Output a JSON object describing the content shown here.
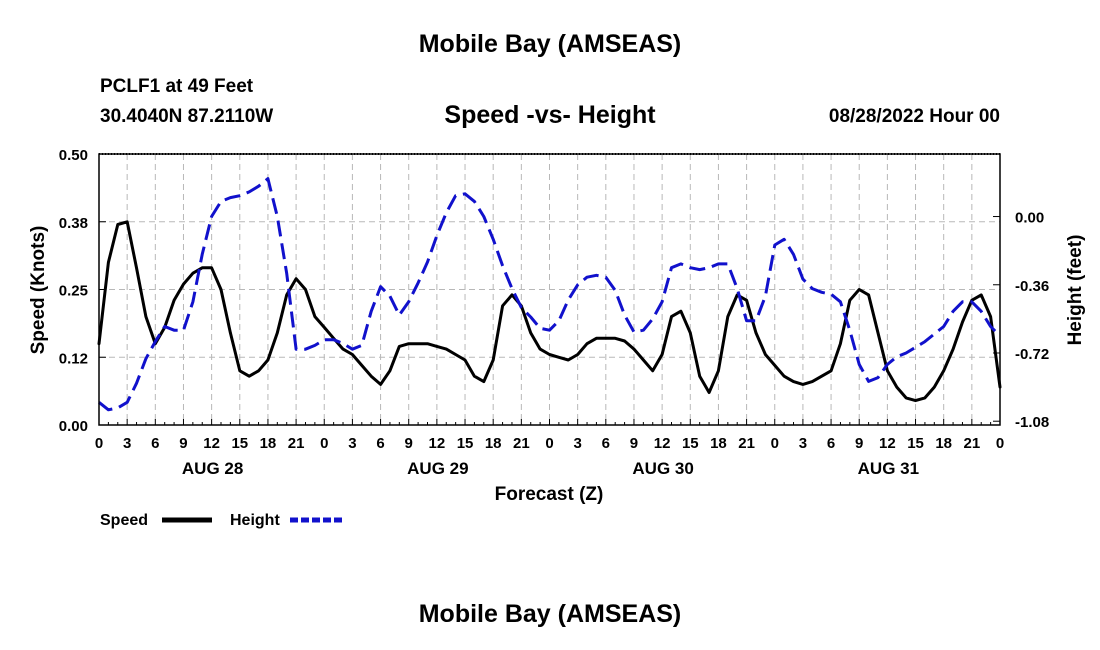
{
  "header": {
    "title": "Mobile Bay (AMSEAS)",
    "station": "PCLF1 at 49 Feet",
    "coords": "30.4040N  87.2110W",
    "subtitle": "Speed -vs- Height",
    "datetime": "08/28/2022 Hour 00"
  },
  "footer": {
    "title": "Mobile Bay (AMSEAS)"
  },
  "chart_data": {
    "type": "line",
    "title": "Speed -vs- Height",
    "xlabel": "Forecast (Z)",
    "ylabel": "Speed (Knots)",
    "y2label": "Height (feet)",
    "xlim": [
      0,
      96
    ],
    "ylim": [
      0,
      0.5
    ],
    "y2lim": [
      -1.1,
      0.33
    ],
    "x_ticks": [
      0,
      3,
      6,
      9,
      12,
      15,
      18,
      21,
      24,
      27,
      30,
      33,
      36,
      39,
      42,
      45,
      48,
      51,
      54,
      57,
      60,
      63,
      66,
      69,
      72,
      75,
      78,
      81,
      84,
      87,
      90,
      93,
      96
    ],
    "x_tick_labels": [
      "0",
      "3",
      "6",
      "9",
      "12",
      "15",
      "18",
      "21",
      "0",
      "3",
      "6",
      "9",
      "12",
      "15",
      "18",
      "21",
      "0",
      "3",
      "6",
      "9",
      "12",
      "15",
      "18",
      "21",
      "0",
      "3",
      "6",
      "9",
      "12",
      "15",
      "18",
      "21",
      "0"
    ],
    "day_labels": [
      {
        "x": 12,
        "label": "AUG 28"
      },
      {
        "x": 36,
        "label": "AUG 29"
      },
      {
        "x": 60,
        "label": "AUG 30"
      },
      {
        "x": 84,
        "label": "AUG 31"
      }
    ],
    "y_ticks": [
      0,
      0.125,
      0.25,
      0.375,
      0.5
    ],
    "y_tick_labels": [
      "0.00",
      "0.12",
      "0.25",
      "0.38",
      "0.50"
    ],
    "y2_ticks": [
      0,
      -0.36,
      -0.72,
      -1.08
    ],
    "y2_tick_labels": [
      "0.00",
      "-0.36",
      "-0.72",
      "-1.08"
    ],
    "grid": true,
    "legend": {
      "position": "bottom-left"
    },
    "series": [
      {
        "name": "Speed",
        "axis": "left",
        "color": "#000000",
        "dash": "solid",
        "x": [
          0,
          1,
          2,
          3,
          4,
          5,
          6,
          7,
          8,
          9,
          10,
          11,
          12,
          13,
          14,
          15,
          16,
          17,
          18,
          19,
          20,
          21,
          22,
          23,
          24,
          25,
          26,
          27,
          28,
          29,
          30,
          31,
          32,
          33,
          34,
          35,
          36,
          37,
          38,
          39,
          40,
          41,
          42,
          43,
          44,
          45,
          46,
          47,
          48,
          49,
          50,
          51,
          52,
          53,
          54,
          55,
          56,
          57,
          58,
          59,
          60,
          61,
          62,
          63,
          64,
          65,
          66,
          67,
          68,
          69,
          70,
          71,
          72,
          73,
          74,
          75,
          76,
          77,
          78,
          79,
          80,
          81,
          82,
          83,
          84,
          85,
          86,
          87,
          88,
          89,
          90,
          91,
          92,
          93,
          94,
          95,
          96
        ],
        "values": [
          0.15,
          0.3,
          0.37,
          0.375,
          0.29,
          0.2,
          0.15,
          0.18,
          0.23,
          0.26,
          0.28,
          0.29,
          0.29,
          0.25,
          0.17,
          0.1,
          0.09,
          0.1,
          0.12,
          0.17,
          0.24,
          0.27,
          0.25,
          0.2,
          0.18,
          0.16,
          0.14,
          0.13,
          0.11,
          0.09,
          0.075,
          0.1,
          0.145,
          0.15,
          0.15,
          0.15,
          0.145,
          0.14,
          0.13,
          0.12,
          0.09,
          0.08,
          0.12,
          0.22,
          0.24,
          0.22,
          0.17,
          0.14,
          0.13,
          0.125,
          0.12,
          0.13,
          0.15,
          0.16,
          0.16,
          0.16,
          0.155,
          0.14,
          0.12,
          0.1,
          0.13,
          0.2,
          0.21,
          0.17,
          0.09,
          0.06,
          0.1,
          0.2,
          0.24,
          0.23,
          0.17,
          0.13,
          0.11,
          0.09,
          0.08,
          0.075,
          0.08,
          0.09,
          0.1,
          0.15,
          0.23,
          0.25,
          0.24,
          0.17,
          0.1,
          0.07,
          0.05,
          0.045,
          0.05,
          0.07,
          0.1,
          0.14,
          0.19,
          0.23,
          0.24,
          0.2,
          0.07
        ]
      },
      {
        "name": "Height",
        "axis": "right",
        "color": "#1111cc",
        "dash": "dashed",
        "x": [
          0,
          1,
          2,
          3,
          4,
          5,
          6,
          7,
          8,
          9,
          10,
          11,
          12,
          13,
          14,
          15,
          16,
          17,
          18,
          19,
          20,
          21,
          22,
          23,
          24,
          25,
          26,
          27,
          28,
          29,
          30,
          31,
          32,
          33,
          34,
          35,
          36,
          37,
          38,
          39,
          40,
          41,
          42,
          43,
          44,
          45,
          46,
          47,
          48,
          49,
          50,
          51,
          52,
          53,
          54,
          55,
          56,
          57,
          58,
          59,
          60,
          61,
          62,
          63,
          64,
          65,
          66,
          67,
          68,
          69,
          70,
          71,
          72,
          73,
          74,
          75,
          76,
          77,
          78,
          79,
          80,
          81,
          82,
          83,
          84,
          85,
          86,
          87,
          88,
          89,
          90,
          91,
          92,
          93,
          94,
          95,
          96
        ],
        "values": [
          -0.98,
          -1.02,
          -1.01,
          -0.98,
          -0.88,
          -0.75,
          -0.66,
          -0.58,
          -0.6,
          -0.6,
          -0.45,
          -0.2,
          0.0,
          0.08,
          0.1,
          0.11,
          0.13,
          0.16,
          0.2,
          0.0,
          -0.3,
          -0.7,
          -0.7,
          -0.68,
          -0.65,
          -0.65,
          -0.67,
          -0.7,
          -0.68,
          -0.5,
          -0.37,
          -0.42,
          -0.52,
          -0.45,
          -0.35,
          -0.24,
          -0.1,
          0.02,
          0.11,
          0.12,
          0.08,
          0.0,
          -0.12,
          -0.26,
          -0.38,
          -0.48,
          -0.53,
          -0.59,
          -0.6,
          -0.55,
          -0.44,
          -0.36,
          -0.32,
          -0.31,
          -0.32,
          -0.39,
          -0.52,
          -0.61,
          -0.6,
          -0.54,
          -0.45,
          -0.27,
          -0.25,
          -0.27,
          -0.28,
          -0.27,
          -0.25,
          -0.25,
          -0.38,
          -0.55,
          -0.55,
          -0.42,
          -0.15,
          -0.12,
          -0.2,
          -0.33,
          -0.38,
          -0.4,
          -0.41,
          -0.45,
          -0.6,
          -0.78,
          -0.87,
          -0.85,
          -0.78,
          -0.74,
          -0.72,
          -0.69,
          -0.66,
          -0.62,
          -0.58,
          -0.5,
          -0.45,
          -0.45,
          -0.5,
          -0.58,
          -0.63
        ]
      }
    ]
  }
}
